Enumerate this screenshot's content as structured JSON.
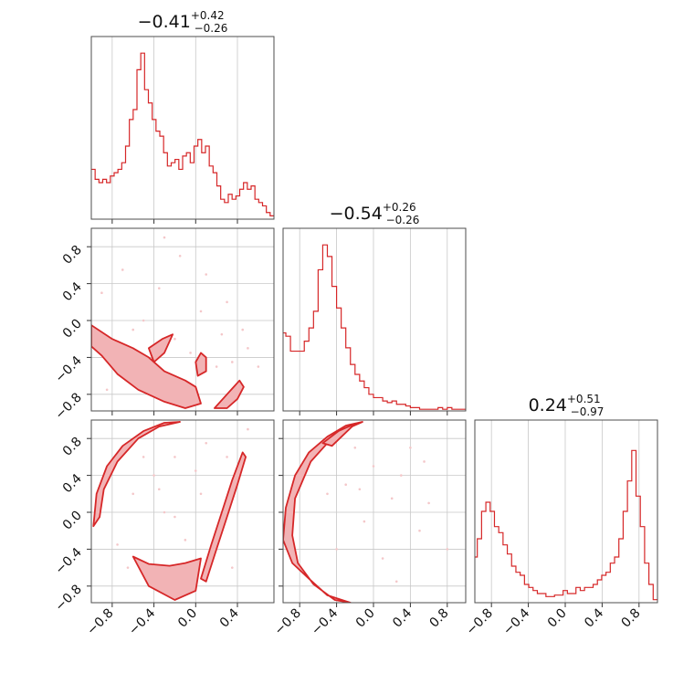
{
  "chart_data": {
    "type": "corner",
    "color": "#d62728",
    "fill_color": "#f2b3b5",
    "scatter_color": "#f4c7c9",
    "titles": [
      {
        "base": "−0.41",
        "sup": "+0.42",
        "sub": "−0.26"
      },
      {
        "base": "−0.54",
        "sup": "+0.26",
        "sub": "−0.26"
      },
      {
        "base": "0.24",
        "sup": "+0.51",
        "sub": "−0.97"
      }
    ],
    "axis_ticks": {
      "x1": [
        "−0.8",
        "−0.4",
        "0.0",
        "0.4"
      ],
      "x2": [
        "−0.8",
        "−0.4",
        "0.0",
        "0.4",
        "0.8"
      ],
      "x3": [
        "−0.8",
        "−0.4",
        "0.0",
        "0.4",
        "0.8"
      ],
      "y2": [
        "0.8",
        "0.4",
        "0.0",
        "−0.4",
        "−0.8"
      ],
      "y3": [
        "0.8",
        "0.4",
        "0.0",
        "−0.4",
        "−0.8"
      ]
    },
    "ranges": {
      "p1": [
        -1.0,
        0.75
      ],
      "p2": [
        -0.98,
        1.0
      ],
      "p3": [
        -0.98,
        1.0
      ]
    },
    "grid": true,
    "histograms": [
      {
        "param": "p1",
        "edges": [
          -1.0,
          0.75
        ],
        "counts": [
          0.3,
          0.24,
          0.22,
          0.24,
          0.22,
          0.26,
          0.28,
          0.3,
          0.34,
          0.44,
          0.6,
          0.66,
          0.9,
          1.0,
          0.78,
          0.7,
          0.6,
          0.53,
          0.5,
          0.4,
          0.32,
          0.34,
          0.36,
          0.3,
          0.38,
          0.4,
          0.34,
          0.44,
          0.48,
          0.4,
          0.44,
          0.32,
          0.28,
          0.2,
          0.12,
          0.1,
          0.15,
          0.12,
          0.14,
          0.18,
          0.22,
          0.18,
          0.2,
          0.12,
          0.1,
          0.08,
          0.04,
          0.02
        ],
        "ylim": [
          0,
          1.1
        ]
      },
      {
        "param": "p2",
        "edges": [
          -1.0,
          1.0
        ],
        "counts": [
          0.47,
          0.45,
          0.36,
          0.36,
          0.36,
          0.42,
          0.5,
          0.6,
          0.85,
          1.0,
          0.93,
          0.75,
          0.62,
          0.5,
          0.38,
          0.28,
          0.22,
          0.18,
          0.14,
          0.1,
          0.08,
          0.08,
          0.06,
          0.05,
          0.06,
          0.04,
          0.04,
          0.03,
          0.02,
          0.02,
          0.01,
          0.01,
          0.01,
          0.01,
          0.02,
          0.01,
          0.02,
          0.01,
          0.01,
          0.01
        ],
        "ylim": [
          0,
          1.1
        ]
      },
      {
        "param": "p3",
        "edges": [
          -1.0,
          1.0
        ],
        "counts": [
          0.3,
          0.42,
          0.6,
          0.66,
          0.6,
          0.5,
          0.46,
          0.38,
          0.32,
          0.24,
          0.2,
          0.18,
          0.12,
          0.1,
          0.08,
          0.06,
          0.06,
          0.04,
          0.04,
          0.05,
          0.05,
          0.08,
          0.06,
          0.06,
          0.1,
          0.08,
          0.1,
          0.1,
          0.12,
          0.15,
          0.18,
          0.2,
          0.26,
          0.3,
          0.42,
          0.6,
          0.8,
          1.0,
          0.7,
          0.5,
          0.26,
          0.12,
          0.02
        ],
        "ylim": [
          0,
          1.2
        ]
      }
    ],
    "contours_2d": [
      {
        "panel": "p1_vs_p2",
        "x": "p1",
        "y": "p2",
        "regions": [
          [
            [
              -1.0,
              -0.05
            ],
            [
              -0.8,
              -0.2
            ],
            [
              -0.6,
              -0.3
            ],
            [
              -0.45,
              -0.4
            ],
            [
              -0.3,
              -0.55
            ],
            [
              -0.1,
              -0.65
            ],
            [
              0.0,
              -0.72
            ],
            [
              0.05,
              -0.9
            ],
            [
              -0.1,
              -0.95
            ],
            [
              -0.3,
              -0.88
            ],
            [
              -0.55,
              -0.75
            ],
            [
              -0.75,
              -0.58
            ],
            [
              -0.9,
              -0.38
            ],
            [
              -1.0,
              -0.28
            ]
          ],
          [
            [
              -0.45,
              -0.3
            ],
            [
              -0.32,
              -0.2
            ],
            [
              -0.22,
              -0.15
            ],
            [
              -0.3,
              -0.35
            ],
            [
              -0.4,
              -0.45
            ]
          ],
          [
            [
              0.3,
              -0.95
            ],
            [
              0.4,
              -0.85
            ],
            [
              0.46,
              -0.72
            ],
            [
              0.42,
              -0.65
            ],
            [
              0.3,
              -0.8
            ],
            [
              0.18,
              -0.95
            ]
          ],
          [
            [
              0.05,
              -0.35
            ],
            [
              0.1,
              -0.4
            ],
            [
              0.1,
              -0.55
            ],
            [
              0.02,
              -0.6
            ],
            [
              0.0,
              -0.45
            ]
          ]
        ],
        "points": [
          [
            -0.7,
            0.55
          ],
          [
            -0.15,
            0.7
          ],
          [
            -0.6,
            -0.1
          ],
          [
            -0.5,
            0.0
          ],
          [
            0.2,
            -0.5
          ],
          [
            0.5,
            -0.3
          ],
          [
            0.3,
            0.2
          ],
          [
            -0.9,
            0.3
          ],
          [
            -0.3,
            0.9
          ],
          [
            0.1,
            0.5
          ],
          [
            0.45,
            -0.1
          ],
          [
            -0.55,
            -0.55
          ],
          [
            -0.2,
            -0.2
          ],
          [
            0.35,
            -0.45
          ],
          [
            -0.85,
            -0.75
          ],
          [
            0.05,
            0.1
          ],
          [
            -0.35,
            0.35
          ],
          [
            0.6,
            -0.5
          ],
          [
            -0.05,
            -0.35
          ],
          [
            0.25,
            -0.15
          ]
        ]
      },
      {
        "panel": "p1_vs_p3",
        "x": "p1",
        "y": "p3",
        "regions": [
          [
            [
              -0.98,
              -0.15
            ],
            [
              -0.95,
              0.2
            ],
            [
              -0.85,
              0.5
            ],
            [
              -0.7,
              0.72
            ],
            [
              -0.5,
              0.88
            ],
            [
              -0.3,
              0.97
            ],
            [
              -0.15,
              0.98
            ],
            [
              -0.35,
              0.93
            ],
            [
              -0.55,
              0.8
            ],
            [
              -0.75,
              0.55
            ],
            [
              -0.88,
              0.25
            ],
            [
              -0.92,
              -0.05
            ]
          ],
          [
            [
              -0.6,
              -0.48
            ],
            [
              -0.45,
              -0.56
            ],
            [
              -0.25,
              -0.58
            ],
            [
              -0.1,
              -0.55
            ],
            [
              0.05,
              -0.5
            ],
            [
              0.0,
              -0.85
            ],
            [
              -0.2,
              -0.95
            ],
            [
              -0.45,
              -0.8
            ]
          ],
          [
            [
              0.1,
              -0.75
            ],
            [
              0.2,
              -0.4
            ],
            [
              0.3,
              -0.05
            ],
            [
              0.4,
              0.3
            ],
            [
              0.48,
              0.6
            ],
            [
              0.45,
              0.65
            ],
            [
              0.35,
              0.35
            ],
            [
              0.25,
              0.0
            ],
            [
              0.15,
              -0.35
            ],
            [
              0.05,
              -0.72
            ]
          ]
        ],
        "points": [
          [
            -0.4,
            0.4
          ],
          [
            -0.2,
            0.6
          ],
          [
            0.1,
            0.75
          ],
          [
            -0.6,
            0.2
          ],
          [
            -0.3,
            0.0
          ],
          [
            0.05,
            0.2
          ],
          [
            -0.75,
            -0.35
          ],
          [
            -0.1,
            -0.3
          ],
          [
            0.3,
            0.6
          ],
          [
            -0.5,
            0.6
          ],
          [
            0.0,
            0.45
          ],
          [
            -0.2,
            -0.05
          ],
          [
            0.35,
            -0.6
          ],
          [
            -0.65,
            -0.6
          ],
          [
            0.5,
            0.9
          ],
          [
            -0.35,
            0.25
          ]
        ]
      },
      {
        "panel": "p2_vs_p3",
        "x": "p2",
        "y": "p3",
        "regions": [
          [
            [
              -0.98,
              -0.3
            ],
            [
              -0.95,
              0.05
            ],
            [
              -0.85,
              0.4
            ],
            [
              -0.7,
              0.65
            ],
            [
              -0.5,
              0.82
            ],
            [
              -0.3,
              0.94
            ],
            [
              -0.12,
              0.98
            ],
            [
              -0.3,
              0.9
            ],
            [
              -0.5,
              0.75
            ],
            [
              -0.68,
              0.55
            ],
            [
              -0.85,
              0.15
            ],
            [
              -0.88,
              -0.25
            ],
            [
              -0.82,
              -0.55
            ],
            [
              -0.65,
              -0.78
            ],
            [
              -0.42,
              -0.95
            ],
            [
              -0.25,
              -0.98
            ],
            [
              -0.5,
              -0.9
            ],
            [
              -0.7,
              -0.72
            ],
            [
              -0.88,
              -0.55
            ]
          ],
          [
            [
              -0.55,
              0.75
            ],
            [
              -0.38,
              0.88
            ],
            [
              -0.2,
              0.96
            ],
            [
              -0.45,
              0.72
            ]
          ]
        ],
        "points": [
          [
            -0.3,
            0.3
          ],
          [
            0.0,
            0.5
          ],
          [
            0.2,
            0.15
          ],
          [
            -0.5,
            0.2
          ],
          [
            -0.1,
            -0.1
          ],
          [
            0.3,
            0.4
          ],
          [
            0.5,
            -0.2
          ],
          [
            -0.2,
            0.7
          ],
          [
            0.1,
            -0.5
          ],
          [
            0.4,
            0.7
          ],
          [
            0.8,
            -0.4
          ],
          [
            0.55,
            0.55
          ],
          [
            -0.4,
            -0.4
          ],
          [
            0.25,
            -0.75
          ],
          [
            -0.15,
            0.25
          ],
          [
            0.6,
            0.1
          ]
        ]
      }
    ]
  }
}
